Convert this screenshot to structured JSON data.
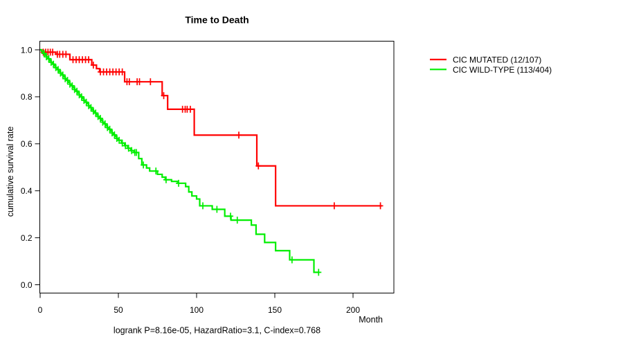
{
  "chart_data": {
    "type": "line",
    "subtype": "kaplan-meier-step",
    "title": "Time to Death",
    "xlabel": "Month",
    "ylabel": "cumulative survival rate",
    "annotation": "logrank P=8.16e-05, HazardRatio=3.1, C-index=0.768",
    "xlim": [
      0,
      226
    ],
    "ylim": [
      0,
      1
    ],
    "xticks": [
      0,
      50,
      100,
      150,
      200
    ],
    "yticks": [
      0,
      0.2,
      0.4,
      0.6,
      0.8,
      1
    ],
    "grid": false,
    "legend_position": "right-outside",
    "axis_color": "#000000",
    "series": [
      {
        "name": "CIC MUTATED (12/107)",
        "color": "#ff0000",
        "steps": [
          [
            0,
            1.0
          ],
          [
            1,
            0.99
          ],
          [
            10,
            0.981
          ],
          [
            19,
            0.958
          ],
          [
            33,
            0.935
          ],
          [
            36,
            0.92
          ],
          [
            38,
            0.906
          ],
          [
            54,
            0.864
          ],
          [
            78,
            0.805
          ],
          [
            81.5,
            0.747
          ],
          [
            98.5,
            0.637
          ],
          [
            138.5,
            0.506
          ],
          [
            150.5,
            0.336
          ]
        ],
        "end_month": 218.5,
        "censor_months": [
          2,
          3.5,
          5,
          6.5,
          8,
          11,
          12.5,
          14.5,
          16.5,
          21,
          23,
          25,
          27,
          29,
          31,
          34,
          38.5,
          40.5,
          42.5,
          44.5,
          46.5,
          48.5,
          50.5,
          52.5,
          55.5,
          57,
          62,
          63.5,
          70.5,
          79,
          91,
          92.7,
          94,
          96,
          127,
          139.5,
          188,
          217.5
        ]
      },
      {
        "name": "CIC WILD-TYPE (113/404)",
        "color": "#00ee00",
        "steps": [
          [
            0,
            1.0
          ],
          [
            1,
            0.993
          ],
          [
            2,
            0.985
          ],
          [
            3,
            0.977
          ],
          [
            4,
            0.97
          ],
          [
            5,
            0.962
          ],
          [
            6,
            0.954
          ],
          [
            7,
            0.947
          ],
          [
            8,
            0.939
          ],
          [
            9,
            0.931
          ],
          [
            10,
            0.924
          ],
          [
            11,
            0.916
          ],
          [
            12,
            0.908
          ],
          [
            13,
            0.901
          ],
          [
            14,
            0.893
          ],
          [
            15,
            0.885
          ],
          [
            16,
            0.877
          ],
          [
            17,
            0.87
          ],
          [
            18,
            0.862
          ],
          [
            19,
            0.854
          ],
          [
            20,
            0.847
          ],
          [
            21,
            0.839
          ],
          [
            22,
            0.831
          ],
          [
            23,
            0.824
          ],
          [
            24,
            0.816
          ],
          [
            25,
            0.808
          ],
          [
            26,
            0.8
          ],
          [
            27,
            0.793
          ],
          [
            28,
            0.785
          ],
          [
            29,
            0.777
          ],
          [
            30,
            0.77
          ],
          [
            31,
            0.762
          ],
          [
            32,
            0.754
          ],
          [
            33,
            0.746
          ],
          [
            34,
            0.739
          ],
          [
            35,
            0.731
          ],
          [
            36,
            0.723
          ],
          [
            37,
            0.716
          ],
          [
            38,
            0.708
          ],
          [
            39,
            0.7
          ],
          [
            40,
            0.692
          ],
          [
            41,
            0.685
          ],
          [
            42,
            0.677
          ],
          [
            43,
            0.669
          ],
          [
            44,
            0.662
          ],
          [
            45,
            0.654
          ],
          [
            46,
            0.646
          ],
          [
            47,
            0.638
          ],
          [
            48,
            0.631
          ],
          [
            49,
            0.623
          ],
          [
            50,
            0.615
          ],
          [
            52,
            0.603
          ],
          [
            54,
            0.592
          ],
          [
            56,
            0.581
          ],
          [
            58,
            0.571
          ],
          [
            60,
            0.563
          ],
          [
            63,
            0.537
          ],
          [
            65,
            0.51
          ],
          [
            68,
            0.497
          ],
          [
            70,
            0.484
          ],
          [
            75,
            0.47
          ],
          [
            78,
            0.458
          ],
          [
            80,
            0.447
          ],
          [
            84,
            0.44
          ],
          [
            88,
            0.432
          ],
          [
            93,
            0.418
          ],
          [
            95,
            0.395
          ],
          [
            97,
            0.378
          ],
          [
            100,
            0.365
          ],
          [
            102,
            0.336
          ],
          [
            110,
            0.321
          ],
          [
            118,
            0.292
          ],
          [
            122,
            0.275
          ],
          [
            135,
            0.254
          ],
          [
            138,
            0.215
          ],
          [
            143.5,
            0.18
          ],
          [
            150.5,
            0.145
          ],
          [
            159.5,
            0.106
          ],
          [
            175,
            0.053
          ]
        ],
        "end_month": 178.5,
        "censor_months": [
          2.5,
          4,
          5.5,
          7,
          8.5,
          10,
          11.5,
          13,
          14.5,
          16,
          17.5,
          19,
          20.5,
          22,
          23.5,
          25,
          26.5,
          28,
          29.5,
          31,
          32.5,
          34,
          35.5,
          37,
          38.5,
          40,
          41.5,
          43,
          44.5,
          46,
          47.5,
          49,
          50.5,
          52.5,
          54.5,
          56.5,
          58.5,
          60.5,
          61.5,
          66,
          74,
          80.5,
          88.5,
          104,
          113,
          121.7,
          126,
          161,
          178
        ]
      }
    ]
  }
}
